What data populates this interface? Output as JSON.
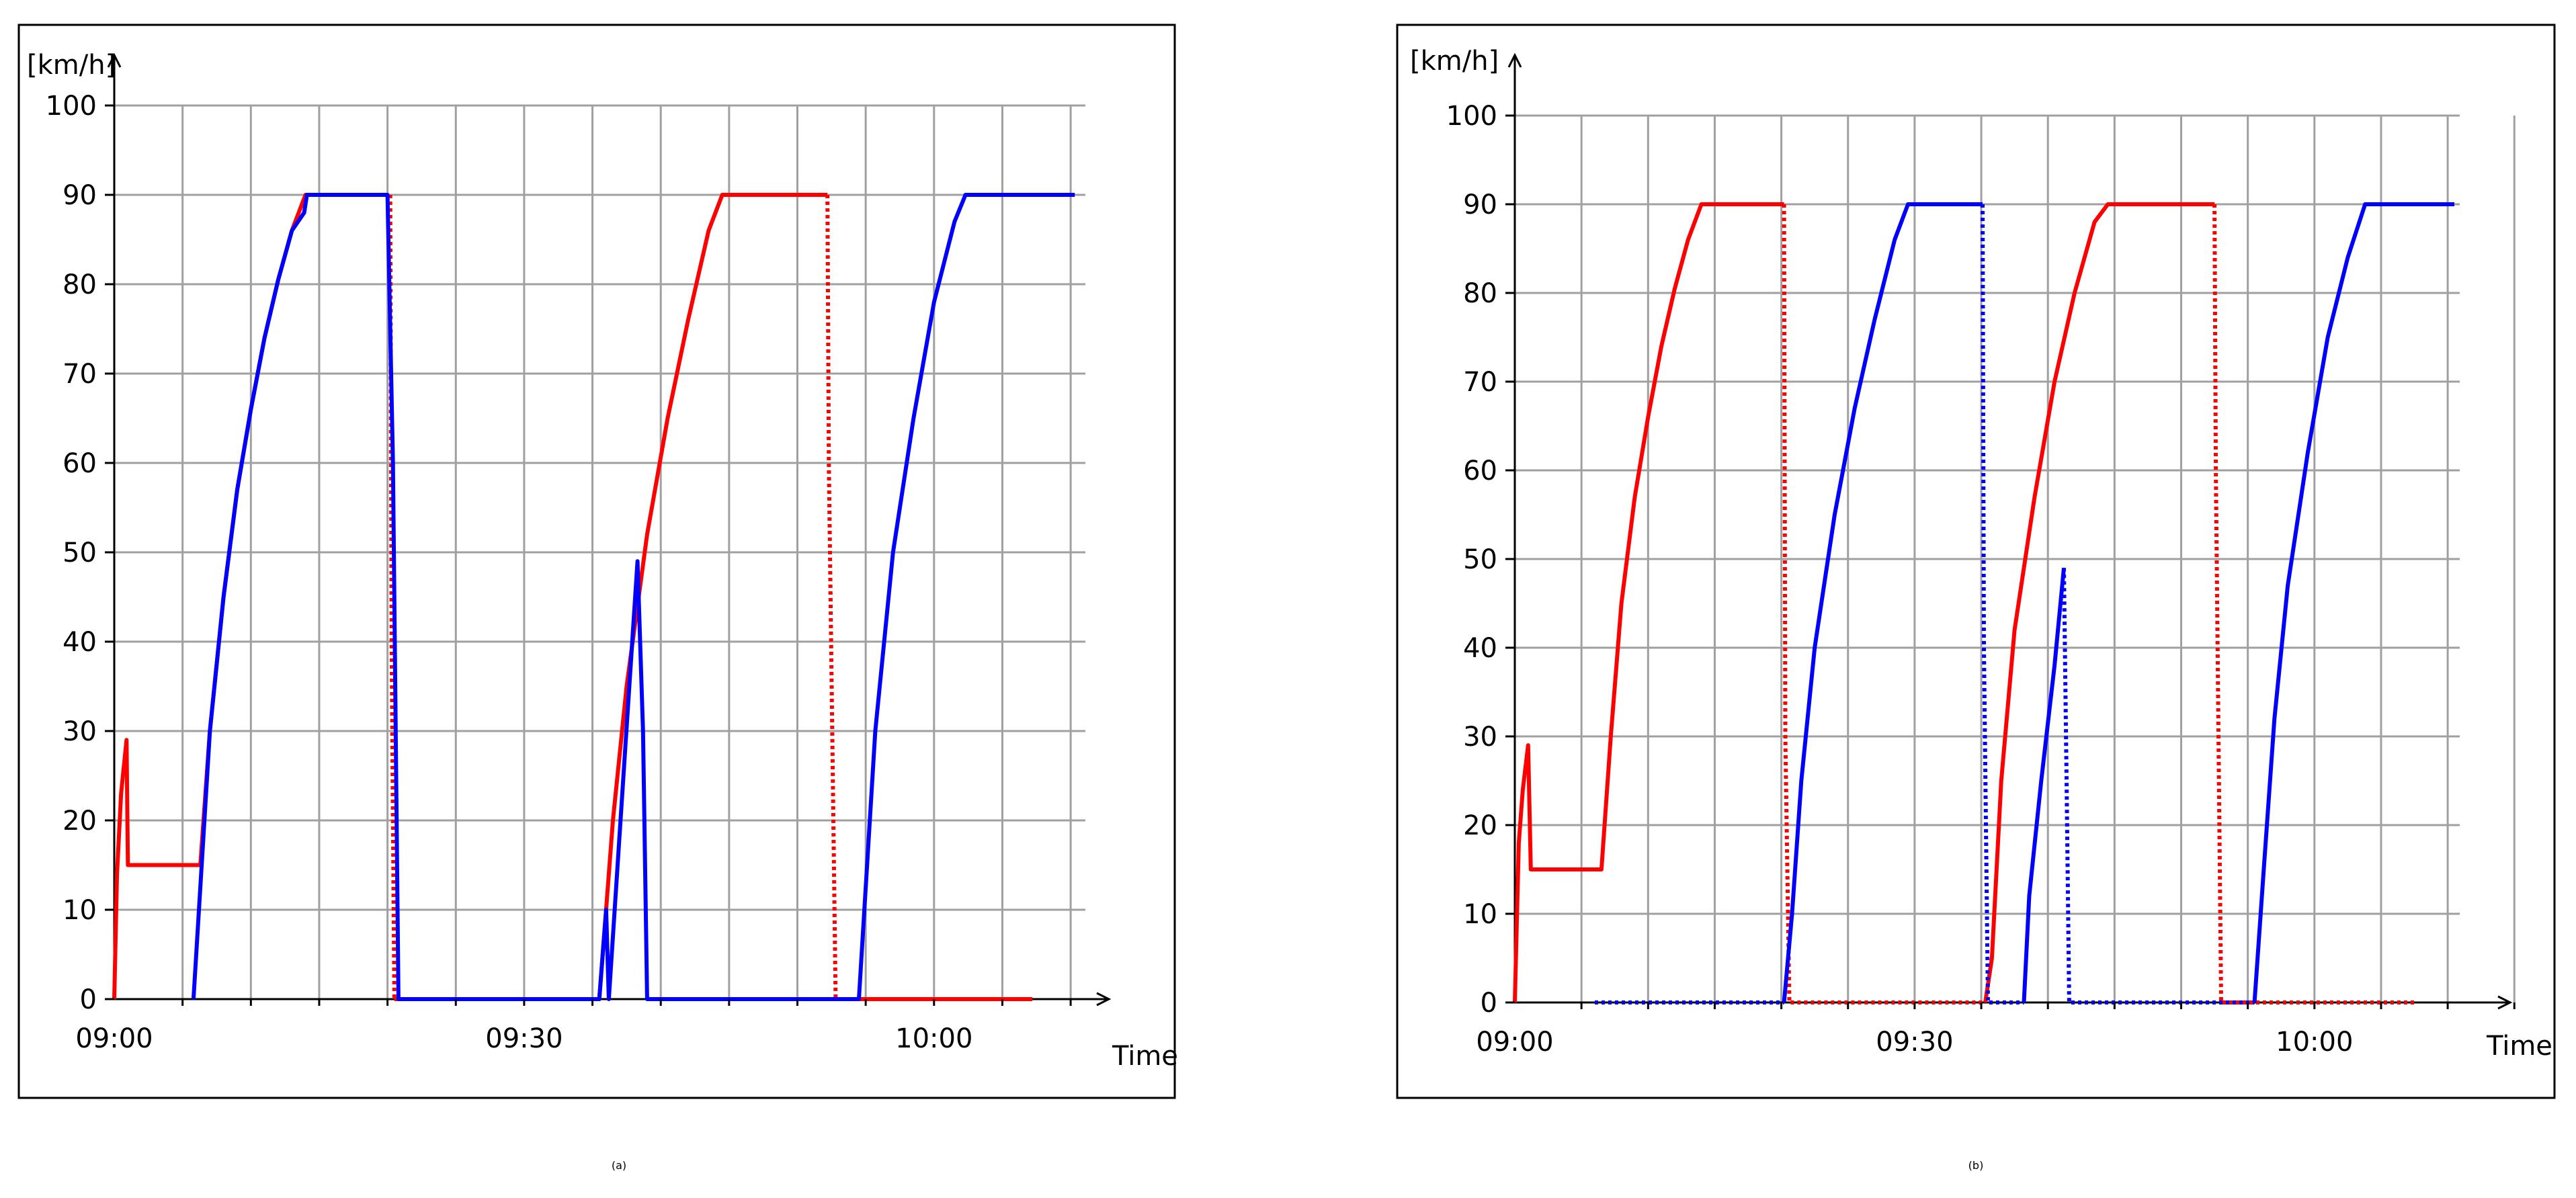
{
  "panels": [
    {
      "id": "a",
      "caption_open": "(",
      "caption_letter": "a",
      "caption_close": ")"
    },
    {
      "id": "b",
      "caption_open": "(",
      "caption_letter": "b",
      "caption_close": ")"
    }
  ],
  "chart_data": [
    {
      "type": "line",
      "ylabel": "[km/h]",
      "xlabel": "Time",
      "x_unit": "minutes after 09:00",
      "xlim": [
        "09:00",
        "10:10"
      ],
      "ylim": [
        0,
        100
      ],
      "yticks": [
        0,
        10,
        20,
        30,
        40,
        50,
        60,
        70,
        80,
        90,
        100
      ],
      "xtick_labels": [
        {
          "t": 0,
          "label": "09:00"
        },
        {
          "t": 30,
          "label": "09:30"
        },
        {
          "t": 60,
          "label": "10:00"
        }
      ],
      "grid": true,
      "series": [
        {
          "color": "#ff0000",
          "style": "solid",
          "points": [
            [
              0,
              0
            ],
            [
              0.2,
              14
            ],
            [
              0.5,
              23
            ],
            [
              0.9,
              29
            ],
            [
              1.0,
              15
            ],
            [
              6.3,
              15
            ],
            [
              7.0,
              30
            ],
            [
              8,
              45
            ],
            [
              9,
              57
            ],
            [
              10,
              66
            ],
            [
              11,
              74
            ],
            [
              12,
              80.5
            ],
            [
              13,
              86
            ],
            [
              14,
              90
            ],
            [
              15,
              90
            ]
          ]
        },
        {
          "color": "#ff0000",
          "style": "dotted",
          "points": [
            [
              20.2,
              90
            ],
            [
              20.3,
              40
            ],
            [
              20.5,
              0
            ]
          ]
        },
        {
          "color": "#ff0000",
          "style": "solid",
          "points": [
            [
              20.5,
              0
            ],
            [
              35.5,
              0
            ],
            [
              36.5,
              20
            ],
            [
              37.5,
              35
            ],
            [
              39,
              52
            ],
            [
              40.5,
              65
            ],
            [
              42,
              76
            ],
            [
              43.5,
              86
            ],
            [
              44.5,
              90
            ],
            [
              52.2,
              90
            ]
          ]
        },
        {
          "color": "#ff0000",
          "style": "dotted",
          "points": [
            [
              52.2,
              90
            ],
            [
              52.3,
              60
            ],
            [
              52.8,
              0
            ]
          ]
        },
        {
          "color": "#ff0000",
          "style": "solid",
          "points": [
            [
              52.8,
              0
            ],
            [
              67.2,
              0
            ]
          ]
        },
        {
          "color": "#0000ff",
          "style": "solid",
          "points": [
            [
              5.8,
              0
            ],
            [
              7,
              30
            ],
            [
              8,
              45
            ],
            [
              9,
              57
            ],
            [
              10,
              66
            ],
            [
              11,
              74
            ],
            [
              12,
              80.5
            ],
            [
              13,
              86
            ],
            [
              13.9,
              88
            ],
            [
              14.1,
              90
            ],
            [
              20.0,
              90
            ],
            [
              20.4,
              60
            ],
            [
              20.8,
              0
            ],
            [
              35.5,
              0
            ],
            [
              36,
              10
            ],
            [
              36.2,
              0
            ],
            [
              38.3,
              49
            ],
            [
              38.7,
              30
            ],
            [
              39.0,
              0
            ],
            [
              54.5,
              0
            ],
            [
              55.7,
              30
            ],
            [
              57,
              50
            ],
            [
              58.5,
              65
            ],
            [
              60,
              78
            ],
            [
              61.5,
              87
            ],
            [
              62.3,
              90
            ],
            [
              70.3,
              90
            ]
          ]
        }
      ]
    },
    {
      "type": "line",
      "ylabel": "[km/h]",
      "xlabel": "Time",
      "x_unit": "minutes after 09:00",
      "xlim": [
        "09:00",
        "10:15"
      ],
      "ylim": [
        0,
        100
      ],
      "yticks": [
        0,
        10,
        20,
        30,
        40,
        50,
        60,
        70,
        80,
        90,
        100
      ],
      "xtick_labels": [
        {
          "t": 0,
          "label": "09:00"
        },
        {
          "t": 30,
          "label": "09:30"
        },
        {
          "t": 60,
          "label": "10:00"
        }
      ],
      "grid": true,
      "series": [
        {
          "color": "#ff0000",
          "style": "solid",
          "points": [
            [
              0,
              0
            ],
            [
              0.3,
              18
            ],
            [
              0.6,
              24
            ],
            [
              1.0,
              29
            ],
            [
              1.2,
              15
            ],
            [
              6.5,
              15
            ],
            [
              7.2,
              30
            ],
            [
              8,
              45
            ],
            [
              9,
              57
            ],
            [
              10,
              66
            ],
            [
              11,
              74
            ],
            [
              12,
              80.5
            ],
            [
              13,
              86
            ],
            [
              14,
              90
            ],
            [
              20.2,
              90
            ]
          ]
        },
        {
          "color": "#ff0000",
          "style": "dotted",
          "points": [
            [
              20.2,
              90
            ],
            [
              20.3,
              30
            ],
            [
              20.6,
              0
            ],
            [
              35.3,
              0
            ]
          ]
        },
        {
          "color": "#ff0000",
          "style": "solid",
          "points": [
            [
              35.3,
              0
            ],
            [
              35.8,
              5
            ],
            [
              36.5,
              25
            ],
            [
              37.5,
              42
            ],
            [
              39,
              57
            ],
            [
              40.5,
              70
            ],
            [
              42,
              80
            ],
            [
              43.5,
              88
            ],
            [
              44.5,
              90
            ],
            [
              52.5,
              90
            ]
          ]
        },
        {
          "color": "#ff0000",
          "style": "dotted",
          "points": [
            [
              52.5,
              90
            ],
            [
              52.6,
              60
            ],
            [
              53,
              0
            ],
            [
              67.5,
              0
            ]
          ]
        },
        {
          "color": "#0000ff",
          "style": "dotted",
          "points": [
            [
              6,
              0
            ],
            [
              20.2,
              0
            ]
          ]
        },
        {
          "color": "#0000ff",
          "style": "solid",
          "points": [
            [
              20.2,
              0
            ],
            [
              20.8,
              10
            ],
            [
              21.5,
              25
            ],
            [
              22.5,
              40
            ],
            [
              24,
              55
            ],
            [
              25.5,
              67
            ],
            [
              27,
              77
            ],
            [
              28.5,
              86
            ],
            [
              29.5,
              90
            ],
            [
              35.1,
              90
            ]
          ]
        },
        {
          "color": "#0000ff",
          "style": "dotted",
          "points": [
            [
              35.1,
              90
            ],
            [
              35.2,
              40
            ],
            [
              35.5,
              0
            ],
            [
              38.2,
              0
            ]
          ]
        },
        {
          "color": "#0000ff",
          "style": "solid",
          "points": [
            [
              38.2,
              0
            ],
            [
              38.6,
              12
            ],
            [
              39.5,
              25
            ],
            [
              40.5,
              38
            ],
            [
              41.2,
              49
            ]
          ]
        },
        {
          "color": "#0000ff",
          "style": "dotted",
          "points": [
            [
              41.2,
              49
            ],
            [
              41.4,
              25
            ],
            [
              41.6,
              0
            ],
            [
              55.5,
              0
            ]
          ]
        },
        {
          "color": "#0000ff",
          "style": "solid",
          "points": [
            [
              55.5,
              0
            ],
            [
              56.2,
              15
            ],
            [
              57,
              32
            ],
            [
              58,
              47
            ],
            [
              59.5,
              62
            ],
            [
              61,
              75
            ],
            [
              62.5,
              84
            ],
            [
              63.8,
              90
            ],
            [
              70.5,
              90
            ]
          ]
        }
      ]
    }
  ]
}
